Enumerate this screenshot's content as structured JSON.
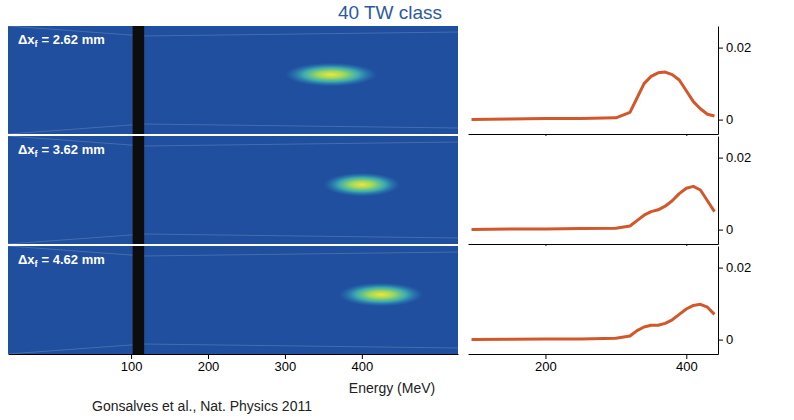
{
  "title": "40 TW class",
  "x_label": "Energy (MeV)",
  "source": "Gonsalves et al., Nat. Physics 2011",
  "chart_data": [
    {
      "type": "spectrum_image",
      "label": {
        "base": "Δx",
        "sub": "f",
        "rest": "= 2.62 mm"
      },
      "xlim": [
        -60,
        525
      ],
      "tick_labels": false,
      "peak_energy": 360,
      "energy_width": 120,
      "blocked_range": [
        102,
        117
      ]
    },
    {
      "type": "spectrum_image",
      "label": {
        "base": "Δx",
        "sub": "f",
        "rest": "= 3.62 mm"
      },
      "xlim": [
        -60,
        525
      ],
      "tick_labels": false,
      "peak_energy": 400,
      "energy_width": 100,
      "blocked_range": [
        102,
        117
      ]
    },
    {
      "type": "spectrum_image",
      "label": {
        "base": "Δx",
        "sub": "f",
        "rest": "= 4.62 mm"
      },
      "xlim": [
        -60,
        525
      ],
      "xticks": [
        100,
        200,
        300,
        400
      ],
      "tick_labels": "x",
      "peak_energy": 425,
      "energy_width": 110,
      "blocked_range": [
        102,
        117
      ]
    },
    {
      "type": "line",
      "color": "#d2572a",
      "x": [
        95,
        150,
        200,
        250,
        300,
        320,
        330,
        340,
        350,
        360,
        370,
        380,
        390,
        400,
        410,
        420,
        430,
        440
      ],
      "values": [
        0,
        0.0002,
        0.0003,
        0.0003,
        0.0005,
        0.002,
        0.006,
        0.01,
        0.012,
        0.013,
        0.0132,
        0.0125,
        0.011,
        0.008,
        0.005,
        0.003,
        0.0015,
        0.001
      ],
      "xlim": [
        90,
        445
      ],
      "ylim": [
        -0.004,
        0.026
      ],
      "xticks": [
        200,
        400
      ],
      "yticks": [
        0,
        0.02
      ],
      "tick_labels": "y"
    },
    {
      "type": "line",
      "color": "#d2572a",
      "x": [
        95,
        150,
        200,
        250,
        300,
        320,
        330,
        340,
        350,
        360,
        370,
        380,
        390,
        400,
        410,
        420,
        430,
        440
      ],
      "values": [
        0,
        0.0002,
        0.0002,
        0.0003,
        0.0004,
        0.001,
        0.0025,
        0.004,
        0.005,
        0.0055,
        0.0065,
        0.008,
        0.01,
        0.0115,
        0.012,
        0.011,
        0.008,
        0.005
      ],
      "xlim": [
        90,
        445
      ],
      "ylim": [
        -0.004,
        0.026
      ],
      "xticks": [
        200,
        400
      ],
      "yticks": [
        0,
        0.02
      ],
      "tick_labels": "y"
    },
    {
      "type": "line",
      "color": "#d2572a",
      "x": [
        95,
        150,
        200,
        250,
        300,
        320,
        330,
        340,
        350,
        360,
        370,
        380,
        390,
        400,
        410,
        420,
        430,
        440
      ],
      "values": [
        0,
        0.0001,
        0.0002,
        0.0002,
        0.0004,
        0.001,
        0.0025,
        0.0035,
        0.004,
        0.004,
        0.0045,
        0.0055,
        0.007,
        0.0085,
        0.0095,
        0.0098,
        0.009,
        0.007
      ],
      "xlim": [
        90,
        445
      ],
      "ylim": [
        -0.004,
        0.026
      ],
      "xticks": [
        200,
        400
      ],
      "yticks": [
        0,
        0.02
      ]
    }
  ]
}
